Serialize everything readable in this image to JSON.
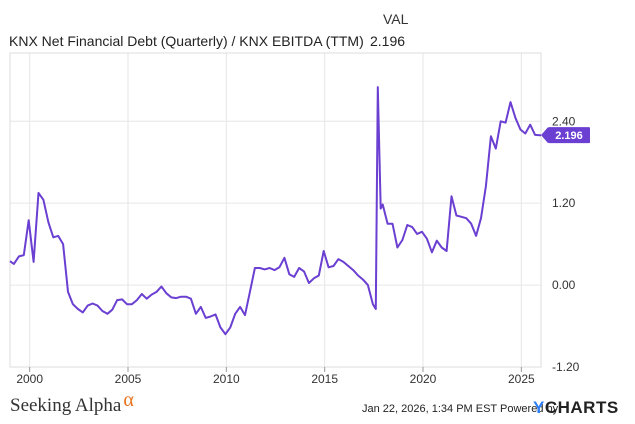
{
  "legend": {
    "column_header": "VAL",
    "series_label": "KNX Net Financial Debt (Quarterly) / KNX EBITDA (TTM)",
    "series_value": "2.196"
  },
  "footer": {
    "brand": "Seeking Alpha",
    "brand_mark": "α",
    "timestamp": "Jan 22, 2026, 1:34 PM EST",
    "powered_by": "Powered by",
    "logo_mark": "Y",
    "logo_text": "CHARTS"
  },
  "colors": {
    "line": "#6a3fd1",
    "grid": "#e6e6e6",
    "axis_text": "#333333",
    "marker_text": "#ffffff"
  },
  "chart_data": {
    "type": "line",
    "title": "",
    "xlabel": "",
    "ylabel": "",
    "xlim": [
      1999.0,
      2026.0
    ],
    "ylim": [
      -1.2,
      3.4
    ],
    "x_ticks": [
      2000,
      2005,
      2010,
      2015,
      2020,
      2025
    ],
    "x_tick_labels": [
      "2000",
      "2005",
      "2010",
      "2015",
      "2020",
      "2025"
    ],
    "y_ticks": [
      2.4,
      1.2,
      0.0,
      -1.2
    ],
    "y_tick_labels": [
      "2.40",
      "1.20",
      "0.00",
      "-1.20"
    ],
    "grid": true,
    "last_value_label": "2.196",
    "series": [
      {
        "name": "KNX Net Financial Debt (Quarterly) / KNX EBITDA (TTM)",
        "x": [
          1999.0,
          1999.2,
          1999.45,
          1999.7,
          1999.95,
          2000.2,
          2000.45,
          2000.7,
          2000.95,
          2001.2,
          2001.45,
          2001.7,
          2001.95,
          2002.2,
          2002.45,
          2002.7,
          2002.95,
          2003.2,
          2003.45,
          2003.7,
          2003.95,
          2004.2,
          2004.45,
          2004.7,
          2004.95,
          2005.2,
          2005.45,
          2005.7,
          2005.95,
          2006.2,
          2006.45,
          2006.7,
          2006.95,
          2007.2,
          2007.45,
          2007.7,
          2007.95,
          2008.2,
          2008.45,
          2008.7,
          2008.95,
          2009.2,
          2009.45,
          2009.7,
          2009.95,
          2010.2,
          2010.45,
          2010.7,
          2010.95,
          2011.2,
          2011.45,
          2011.7,
          2011.95,
          2012.2,
          2012.45,
          2012.7,
          2012.95,
          2013.2,
          2013.45,
          2013.7,
          2013.95,
          2014.2,
          2014.45,
          2014.7,
          2014.95,
          2015.2,
          2015.45,
          2015.7,
          2015.95,
          2016.2,
          2016.45,
          2016.7,
          2016.95,
          2017.2,
          2017.45,
          2017.6,
          2017.7,
          2017.85,
          2017.95,
          2018.2,
          2018.45,
          2018.7,
          2018.95,
          2019.2,
          2019.45,
          2019.7,
          2019.95,
          2020.2,
          2020.45,
          2020.7,
          2020.95,
          2021.2,
          2021.45,
          2021.7,
          2021.95,
          2022.2,
          2022.45,
          2022.7,
          2022.95,
          2023.2,
          2023.45,
          2023.7,
          2023.95,
          2024.2,
          2024.45,
          2024.7,
          2024.95,
          2025.2,
          2025.45,
          2025.7,
          2025.95,
          2026.0
        ],
        "y": [
          0.35,
          0.31,
          0.42,
          0.44,
          0.95,
          0.34,
          1.35,
          1.25,
          0.92,
          0.7,
          0.72,
          0.6,
          -0.1,
          -0.28,
          -0.35,
          -0.4,
          -0.3,
          -0.27,
          -0.3,
          -0.38,
          -0.42,
          -0.36,
          -0.22,
          -0.21,
          -0.28,
          -0.28,
          -0.22,
          -0.13,
          -0.2,
          -0.14,
          -0.1,
          -0.02,
          -0.12,
          -0.18,
          -0.19,
          -0.17,
          -0.17,
          -0.2,
          -0.42,
          -0.32,
          -0.48,
          -0.46,
          -0.43,
          -0.62,
          -0.72,
          -0.62,
          -0.42,
          -0.32,
          -0.44,
          -0.1,
          0.25,
          0.25,
          0.23,
          0.25,
          0.22,
          0.26,
          0.4,
          0.16,
          0.12,
          0.25,
          0.2,
          0.03,
          0.1,
          0.14,
          0.5,
          0.26,
          0.28,
          0.38,
          0.34,
          0.28,
          0.22,
          0.14,
          0.08,
          0.0,
          -0.28,
          -0.35,
          2.9,
          1.12,
          1.18,
          0.9,
          0.9,
          0.55,
          0.66,
          0.88,
          0.85,
          0.75,
          0.78,
          0.68,
          0.48,
          0.65,
          0.55,
          0.5,
          1.3,
          1.02,
          1.0,
          0.98,
          0.9,
          0.72,
          0.98,
          1.45,
          2.18,
          2.0,
          2.4,
          2.38,
          2.68,
          2.45,
          2.28,
          2.22,
          2.35,
          2.2,
          2.196,
          2.196
        ]
      }
    ]
  }
}
